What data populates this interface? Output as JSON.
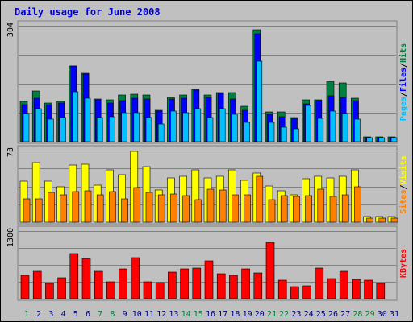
{
  "chart_data": {
    "type": "bar",
    "title": "Daily usage for June 2008",
    "categories": [
      "1",
      "2",
      "3",
      "4",
      "5",
      "6",
      "7",
      "8",
      "9",
      "10",
      "11",
      "12",
      "13",
      "14",
      "15",
      "16",
      "17",
      "18",
      "19",
      "20",
      "21",
      "22",
      "23",
      "24",
      "25",
      "26",
      "27",
      "28",
      "29",
      "30",
      "31"
    ],
    "weekend_days": [
      "1",
      "7",
      "8",
      "14",
      "15",
      "21",
      "22",
      "28",
      "29"
    ],
    "grid": true,
    "colors": {
      "background": "#c0c0c0",
      "frame": "#808080",
      "hits": "#008040",
      "files": "#0000ff",
      "pages": "#00c0ff",
      "visits": "#ffff00",
      "sites": "#ff8000",
      "kbytes": "#ff0000",
      "weekday_label": "#000080",
      "weekend_label": "#008040",
      "title": "#0000cc"
    },
    "panels": [
      {
        "id": "requests",
        "max_label": "304",
        "ylim": [
          0,
          304
        ],
        "legend_words": [
          "Pages",
          "Files",
          "Hits"
        ],
        "series": [
          {
            "name": "Hits",
            "values": [
              105,
              133,
              101,
              106,
              199,
              180,
              111,
              109,
              122,
              125,
              122,
              82,
              117,
              123,
              137,
              122,
              128,
              128,
              92,
              293,
              78,
              79,
              63,
              110,
              110,
              158,
              154,
              113,
              12,
              12,
              12
            ]
          },
          {
            "name": "Files",
            "values": [
              98,
              115,
              98,
              101,
              199,
              178,
              110,
              101,
              108,
              114,
              112,
              80,
              111,
              115,
              136,
              117,
              126,
              112,
              82,
              283,
              71,
              66,
              61,
              100,
              107,
              120,
              117,
              107,
              11,
              11,
              11
            ]
          },
          {
            "name": "Pages",
            "values": [
              73,
              87,
              60,
              63,
              130,
              115,
              64,
              65,
              75,
              75,
              63,
              47,
              80,
              77,
              87,
              64,
              87,
              71,
              50,
              212,
              51,
              38,
              34,
              95,
              62,
              80,
              74,
              60,
              10,
              10,
              10
            ]
          }
        ]
      },
      {
        "id": "visitors",
        "max_label": "73",
        "ylim": [
          0,
          73
        ],
        "legend_words": [
          "Sites",
          "Visits"
        ],
        "series": [
          {
            "name": "Visits",
            "values": [
              42,
              61,
              42,
              36,
              58,
              59,
              38,
              53,
              48,
              72,
              57,
              33,
              45,
              47,
              53,
              45,
              47,
              53,
              43,
              50,
              37,
              32,
              28,
              44,
              47,
              45,
              47,
              53,
              6,
              6,
              6
            ]
          },
          {
            "name": "Sites",
            "values": [
              24,
              24,
              30,
              28,
              31,
              32,
              28,
              31,
              24,
              35,
              30,
              28,
              29,
              27,
              23,
              34,
              33,
              28,
              28,
              47,
              23,
              27,
              26,
              27,
              34,
              26,
              28,
              36,
              4,
              4,
              4
            ]
          }
        ]
      },
      {
        "id": "kbytes",
        "max_label": "1300",
        "ylim": [
          0,
          1300
        ],
        "legend_words": [
          "KBytes"
        ],
        "series": [
          {
            "name": "KBytes",
            "values": [
              450,
              530,
              290,
              400,
              870,
              780,
              520,
              325,
              570,
              795,
              320,
              310,
              510,
              570,
              590,
              720,
              480,
              450,
              570,
              500,
              1080,
              360,
              225,
              255,
              590,
              390,
              525,
              370,
              360,
              290,
              0
            ]
          }
        ]
      }
    ]
  }
}
